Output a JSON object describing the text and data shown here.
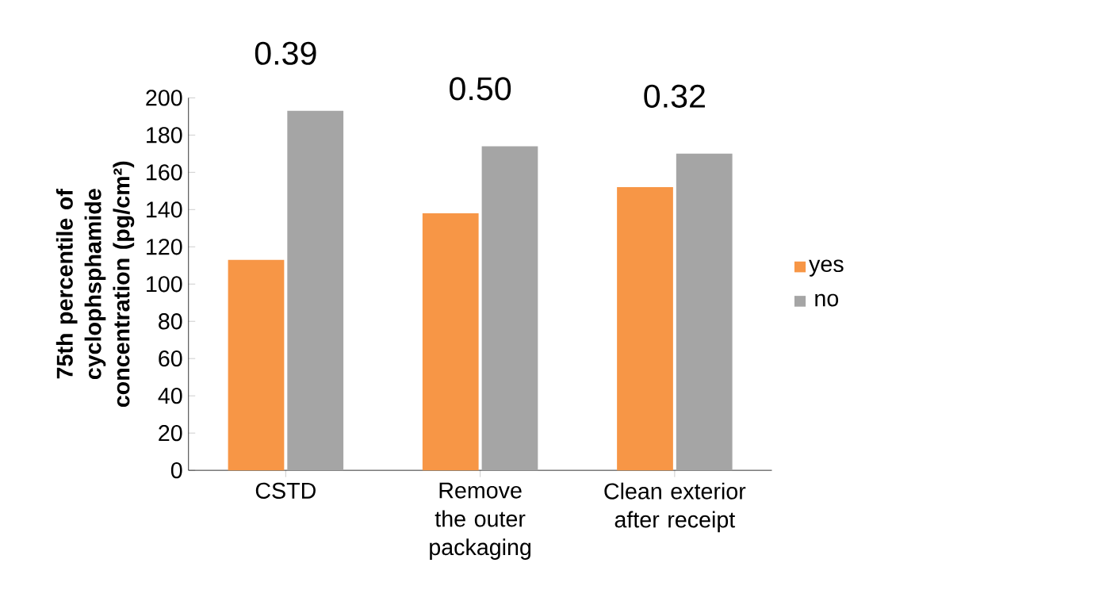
{
  "chart_data": {
    "type": "bar",
    "ylabel": "75th percentile of cyclophsphamide concentration (pg/cm²)",
    "categories": [
      "CSTD",
      "Remove the outer packaging",
      "Clean exterior after receipt"
    ],
    "series": [
      {
        "name": "yes",
        "color": "#f79646",
        "values": [
          113,
          138,
          152
        ]
      },
      {
        "name": "no",
        "color": "#a5a5a5",
        "values": [
          193,
          174,
          170
        ]
      }
    ],
    "ylim": [
      0,
      200
    ],
    "yticks": [
      0,
      20,
      40,
      60,
      80,
      100,
      120,
      140,
      160,
      180,
      200
    ],
    "legend": "right",
    "grid": false,
    "annotations": [
      "0.39",
      "0.50",
      "0.32"
    ]
  }
}
